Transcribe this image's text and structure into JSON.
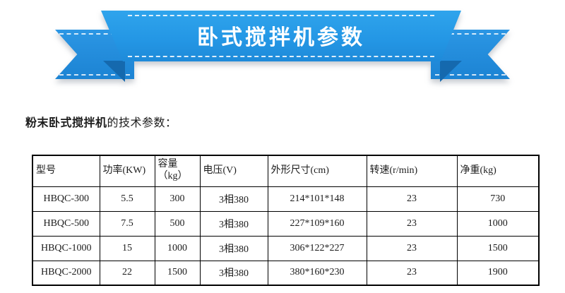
{
  "banner": {
    "title": "卧式搅拌机参数"
  },
  "intro": {
    "bold_text": "粉末卧式搅拌机",
    "normal_text": "的技术参数："
  },
  "spec_table": {
    "headers": {
      "model": "型号",
      "power": "功率(KW)",
      "capacity_line1": "容量",
      "capacity_line2": "（kg）",
      "voltage": "电压(V)",
      "dimensions": "外形尺寸(cm)",
      "speed": "转速(r/min)",
      "weight": "净重(kg)"
    },
    "rows": [
      [
        "HBQC-300",
        "5.5",
        "300",
        "3相380",
        "214*101*148",
        "23",
        "730"
      ],
      [
        "HBQC-500",
        "7.5",
        "500",
        "3相380",
        "227*109*160",
        "23",
        "1000"
      ],
      [
        "HBQC-1000",
        "15",
        "1000",
        "3相380",
        "306*122*227",
        "23",
        "1500"
      ],
      [
        "HBQC-2000",
        "22",
        "1500",
        "3相380",
        "380*160*230",
        "23",
        "1900"
      ]
    ]
  },
  "colors": {
    "band_top": "#2fa4ec",
    "band_bottom": "#1e8ad9",
    "tail_top": "#2b96e4",
    "tail_bottom": "#1c83d3",
    "fold": "#1569ae",
    "table_border": "#000000",
    "text": "#1c1c1c",
    "banner_text": "#ffffff"
  }
}
